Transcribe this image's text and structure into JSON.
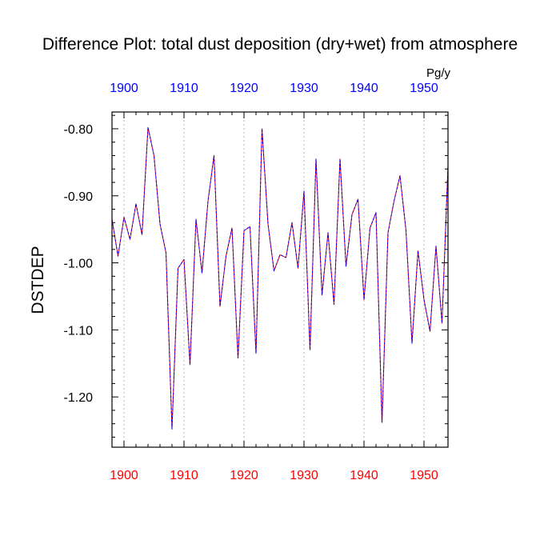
{
  "chart_data": {
    "type": "line",
    "title": "Difference Plot: total dust deposition (dry+wet) from atmosphere",
    "units": "Pg/y",
    "ylabel": "DSTDEP",
    "xlabel": "",
    "xlim": [
      1898,
      1954
    ],
    "ylim": [
      -1.275,
      -0.775
    ],
    "x_ticks": [
      1900,
      1910,
      1920,
      1930,
      1940,
      1950
    ],
    "y_ticks": [
      -0.8,
      -0.9,
      -1.0,
      -1.1,
      -1.2
    ],
    "y_tick_labels": [
      "-0.80",
      "-0.90",
      "-1.00",
      "-1.10",
      "-1.20"
    ],
    "grid": "x-dotted",
    "colors": {
      "top_axis_labels": "#0000ff",
      "bottom_axis_labels": "#ff0000",
      "series_primary": "#ff0000",
      "series_secondary": "#0000ff"
    },
    "x": [
      1898,
      1899,
      1900,
      1901,
      1902,
      1903,
      1904,
      1905,
      1906,
      1907,
      1908,
      1909,
      1910,
      1911,
      1912,
      1913,
      1914,
      1915,
      1916,
      1917,
      1918,
      1919,
      1920,
      1921,
      1922,
      1923,
      1924,
      1925,
      1926,
      1927,
      1928,
      1929,
      1930,
      1931,
      1932,
      1933,
      1934,
      1935,
      1936,
      1937,
      1938,
      1939,
      1940,
      1941,
      1942,
      1943,
      1944,
      1945,
      1946,
      1947,
      1948,
      1949,
      1950,
      1951,
      1952,
      1953,
      1954
    ],
    "series": [
      {
        "values": [
          -0.935,
          -0.99,
          -0.932,
          -0.965,
          -0.912,
          -0.958,
          -0.798,
          -0.84,
          -0.942,
          -0.985,
          -1.248,
          -1.008,
          -0.995,
          -1.152,
          -0.935,
          -1.015,
          -0.908,
          -0.84,
          -1.065,
          -0.99,
          -0.948,
          -1.142,
          -0.952,
          -0.946,
          -1.135,
          -0.8,
          -0.942,
          -1.012,
          -0.988,
          -0.992,
          -0.94,
          -1.008,
          -0.893,
          -1.13,
          -0.845,
          -1.048,
          -0.955,
          -1.062,
          -0.845,
          -1.005,
          -0.928,
          -0.905,
          -1.055,
          -0.948,
          -0.925,
          -1.238,
          -0.955,
          -0.908,
          -0.87,
          -0.952,
          -1.12,
          -0.982,
          -1.055,
          -1.102,
          -0.975,
          -1.09,
          -0.855
        ]
      },
      {
        "values": [
          -0.935,
          -0.99,
          -0.932,
          -0.965,
          -0.912,
          -0.958,
          -0.798,
          -0.84,
          -0.942,
          -0.985,
          -1.248,
          -1.008,
          -0.995,
          -1.152,
          -0.935,
          -1.015,
          -0.908,
          -0.84,
          -1.065,
          -0.99,
          -0.948,
          -1.142,
          -0.952,
          -0.946,
          -1.135,
          -0.8,
          -0.942,
          -1.012,
          -0.988,
          -0.992,
          -0.94,
          -1.008,
          -0.893,
          -1.13,
          -0.845,
          -1.048,
          -0.955,
          -1.062,
          -0.845,
          -1.005,
          -0.928,
          -0.905,
          -1.055,
          -0.948,
          -0.925,
          -1.238,
          -0.955,
          -0.908,
          -0.87,
          -0.952,
          -1.12,
          -0.982,
          -1.055,
          -1.102,
          -0.975,
          -1.09,
          -0.855
        ]
      }
    ]
  }
}
